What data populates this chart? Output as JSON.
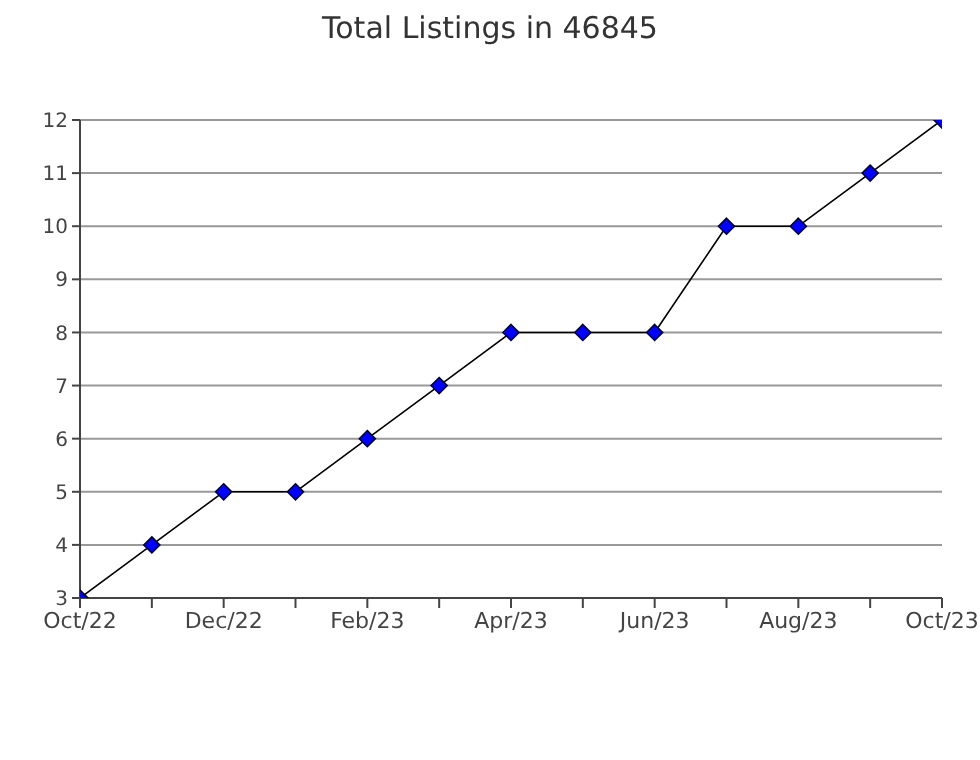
{
  "chart_data": {
    "type": "line",
    "title": "Total Listings in 46845",
    "categories": [
      "Oct/22",
      null,
      "Dec/22",
      null,
      "Feb/23",
      null,
      "Apr/23",
      null,
      "Jun/23",
      null,
      "Aug/23",
      null,
      "Oct/23"
    ],
    "series": [
      {
        "color": "#0000ff",
        "values": [
          3,
          4,
          5,
          5,
          6,
          7,
          8,
          8,
          8,
          10,
          10,
          11,
          12
        ]
      }
    ],
    "ylim": [
      3,
      12
    ],
    "yticks": [
      3,
      4,
      5,
      6,
      7,
      8,
      9,
      10,
      11,
      12
    ],
    "grid": "y",
    "marker": "diamond",
    "line_style": "solid"
  }
}
